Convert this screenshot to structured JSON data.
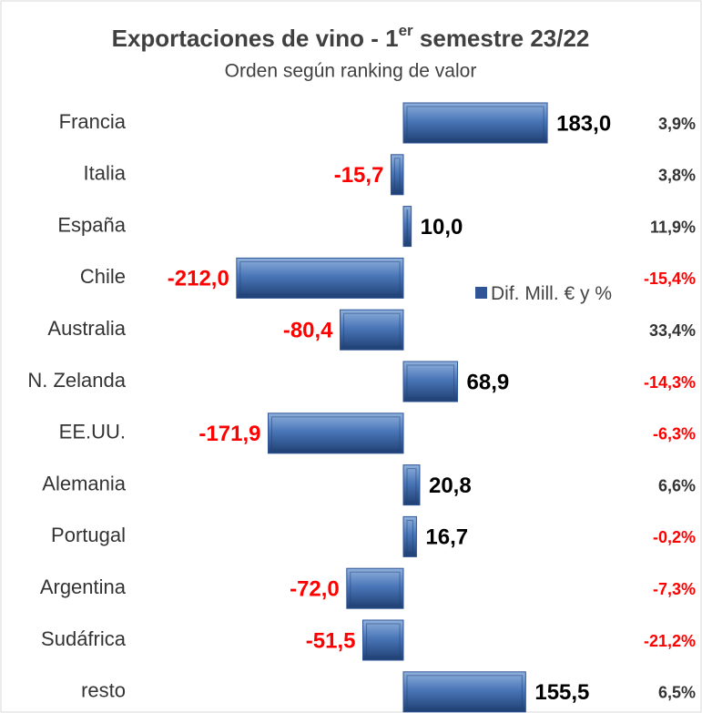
{
  "chart_data": {
    "type": "bar",
    "orientation": "horizontal",
    "title": [
      "Exportaciones de vino - 1",
      "er",
      " semestre 23/22"
    ],
    "subtitle": "Orden según ranking de valor",
    "categories": [
      "Francia",
      "Italia",
      "España",
      "Chile",
      "Australia",
      "N. Zelanda",
      "EE.UU.",
      "Alemania",
      "Portugal",
      "Argentina",
      "Sudáfrica",
      "resto"
    ],
    "series": [
      {
        "name": "Dif. Mill. € y %",
        "color": "#2f5597",
        "values": [
          183.0,
          -15.7,
          10.0,
          -212.0,
          -80.4,
          68.9,
          -171.9,
          20.8,
          16.7,
          -72.0,
          -51.5,
          155.5
        ],
        "value_labels": [
          "183,0",
          "-15,7",
          "10,0",
          "-212,0",
          "-80,4",
          "68,9",
          "-171,9",
          "20,8",
          "16,7",
          "-72,0",
          "-51,5",
          "155,5"
        ],
        "percent_values": [
          3.9,
          3.8,
          11.9,
          -15.4,
          33.4,
          -14.3,
          -6.3,
          6.6,
          -0.2,
          -7.3,
          -21.2,
          6.5
        ],
        "percent_labels": [
          "3,9%",
          "3,8%",
          "11,9%",
          "-15,4%",
          "33,4%",
          "-14,3%",
          "-6,3%",
          "6,6%",
          "-0,2%",
          "-7,3%",
          "-21,2%",
          "6,5%"
        ]
      }
    ],
    "xlim": [
      -250,
      250
    ],
    "negative_color": "#ff0000",
    "positive_color": "#000000"
  }
}
